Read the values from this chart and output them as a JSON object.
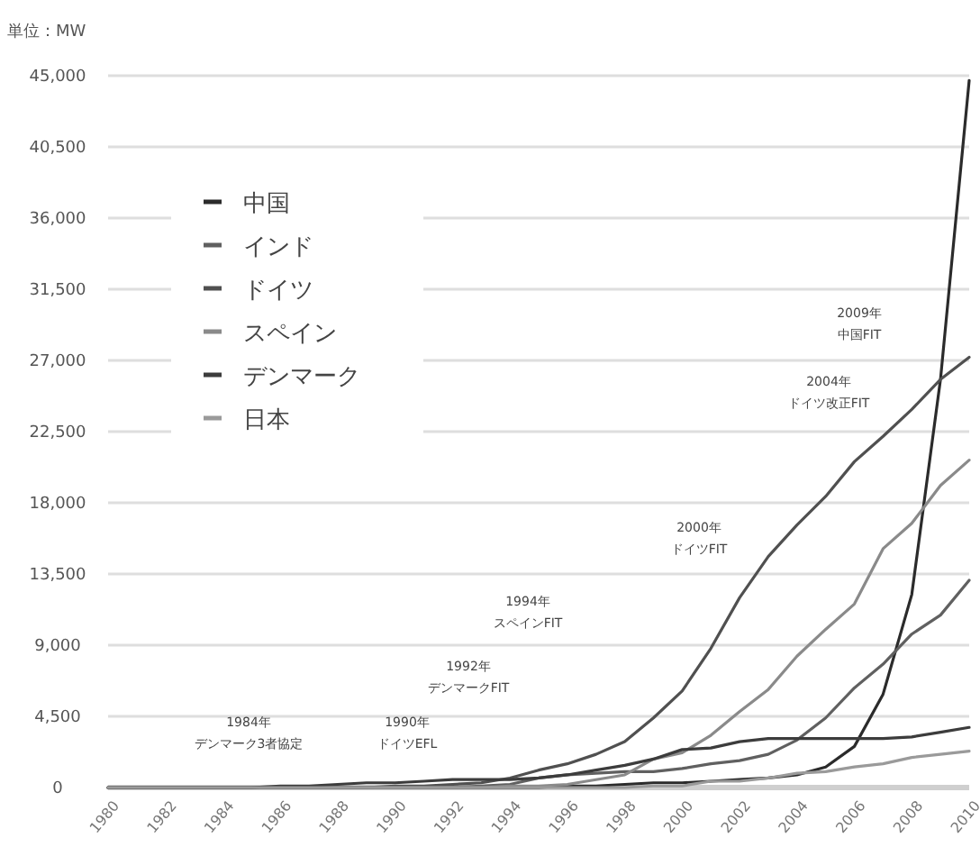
{
  "chart_data": {
    "type": "line",
    "ylabel": "単位：MW",
    "x": [
      1980,
      1981,
      1982,
      1983,
      1984,
      1985,
      1986,
      1987,
      1988,
      1989,
      1990,
      1991,
      1992,
      1993,
      1994,
      1995,
      1996,
      1997,
      1998,
      1999,
      2000,
      2001,
      2002,
      2003,
      2004,
      2005,
      2006,
      2007,
      2008,
      2009,
      2010
    ],
    "series": [
      {
        "name": "中国",
        "color": "#2b2b2b",
        "values": [
          0,
          0,
          0,
          0,
          0,
          0,
          0,
          0,
          0,
          0,
          0,
          0,
          0,
          0,
          0,
          0,
          100,
          100,
          200,
          300,
          300,
          400,
          500,
          600,
          800,
          1300,
          2600,
          5900,
          12200,
          25800,
          44700
        ]
      },
      {
        "name": "インド",
        "color": "#606060",
        "values": [
          0,
          0,
          0,
          0,
          0,
          0,
          0,
          0,
          0,
          0,
          0,
          0,
          0,
          100,
          200,
          600,
          800,
          900,
          1000,
          1000,
          1200,
          1500,
          1700,
          2100,
          3000,
          4400,
          6300,
          7800,
          9700,
          10900,
          13100
        ]
      },
      {
        "name": "ドイツ",
        "color": "#505050",
        "values": [
          0,
          0,
          0,
          0,
          0,
          0,
          0,
          0,
          0,
          0,
          100,
          100,
          200,
          300,
          600,
          1100,
          1500,
          2100,
          2900,
          4400,
          6100,
          8800,
          12000,
          14600,
          16600,
          18400,
          20600,
          22200,
          23900,
          25800,
          27200
        ]
      },
      {
        "name": "スペイン",
        "color": "#8a8a8a",
        "values": [
          0,
          0,
          0,
          0,
          0,
          0,
          0,
          0,
          0,
          0,
          0,
          0,
          0,
          0,
          100,
          100,
          200,
          500,
          800,
          1800,
          2200,
          3300,
          4800,
          6200,
          8300,
          10000,
          11600,
          15100,
          16700,
          19100,
          20700
        ]
      },
      {
        "name": "デンマーク",
        "color": "#3c3c3c",
        "values": [
          0,
          0,
          0,
          0,
          0,
          0,
          100,
          100,
          200,
          300,
          300,
          400,
          500,
          500,
          500,
          600,
          800,
          1100,
          1400,
          1800,
          2400,
          2500,
          2900,
          3100,
          3100,
          3100,
          3100,
          3100,
          3200,
          3500,
          3800
        ]
      },
      {
        "name": "日本",
        "color": "#9a9a9a",
        "values": [
          0,
          0,
          0,
          0,
          0,
          0,
          0,
          0,
          0,
          0,
          0,
          0,
          0,
          0,
          0,
          0,
          0,
          0,
          0,
          100,
          100,
          400,
          400,
          600,
          900,
          1000,
          1300,
          1500,
          1900,
          2100,
          2300
        ]
      }
    ],
    "xlim": [
      1980,
      2010
    ],
    "xticks": [
      1980,
      1982,
      1984,
      1986,
      1988,
      1990,
      1992,
      1994,
      1996,
      1998,
      2000,
      2002,
      2004,
      2006,
      2008,
      2010
    ],
    "ylim": [
      0,
      45000
    ],
    "yticks": [
      {
        "value": 0,
        "label": "0"
      },
      {
        "value": 4500,
        "label": "4,500"
      },
      {
        "value": 9000,
        "label": "9,000"
      },
      {
        "value": 13500,
        "label": "13,500"
      },
      {
        "value": 18000,
        "label": "18,000"
      },
      {
        "value": 22500,
        "label": "22,500"
      },
      {
        "value": 27000,
        "label": "27,000"
      },
      {
        "value": 31500,
        "label": "31,500"
      },
      {
        "value": 36000,
        "label": "36,000"
      },
      {
        "value": 40500,
        "label": "40,500"
      },
      {
        "value": 45000,
        "label": "45,000"
      }
    ],
    "grid": "y",
    "legend": "top left",
    "marker": "none",
    "line_style": "solid",
    "annotations": [
      "1984年デンマーク3者協定",
      "1990年ドイツEFL",
      "1992年デンマークFIT",
      "1994年スペインFIT",
      "2000年ドイツFIT",
      "2004年ドイツ改正FIT",
      "2009年中国FIT"
    ]
  }
}
